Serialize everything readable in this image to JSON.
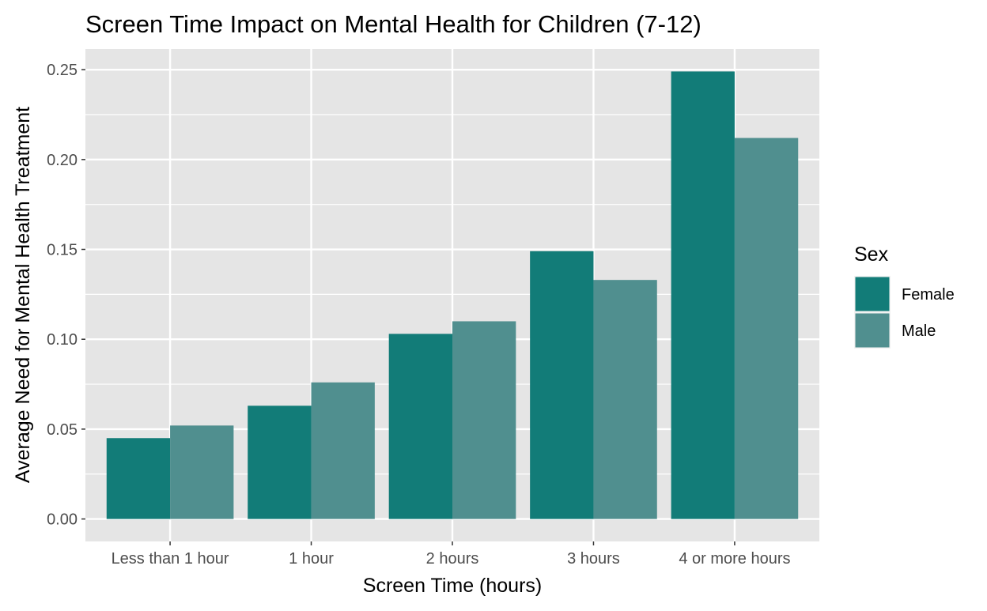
{
  "chart_data": {
    "type": "bar",
    "title": "Screen Time Impact on Mental Health for Children (7-12)",
    "xlabel": "Screen Time (hours)",
    "ylabel": "Average Need for Mental Health Treatment",
    "categories": [
      "Less than 1 hour",
      "1 hour",
      "2 hours",
      "3 hours",
      "4 or more hours"
    ],
    "series": [
      {
        "name": "Female",
        "color": "#127C78",
        "values": [
          0.045,
          0.063,
          0.103,
          0.149,
          0.249
        ]
      },
      {
        "name": "Male",
        "color": "#508F8F",
        "values": [
          0.052,
          0.076,
          0.11,
          0.133,
          0.212
        ]
      }
    ],
    "yticks": [
      0.0,
      0.05,
      0.1,
      0.15,
      0.2,
      0.25
    ],
    "ytick_labels": [
      "0.00",
      "0.05",
      "0.10",
      "0.15",
      "0.20",
      "0.25"
    ],
    "ylim": [
      -0.0125,
      0.2615
    ],
    "grid": true,
    "legend": {
      "title": "Sex",
      "position": "right"
    },
    "panel_background": "#E5E5E5",
    "grid_color": "#FFFFFF"
  }
}
